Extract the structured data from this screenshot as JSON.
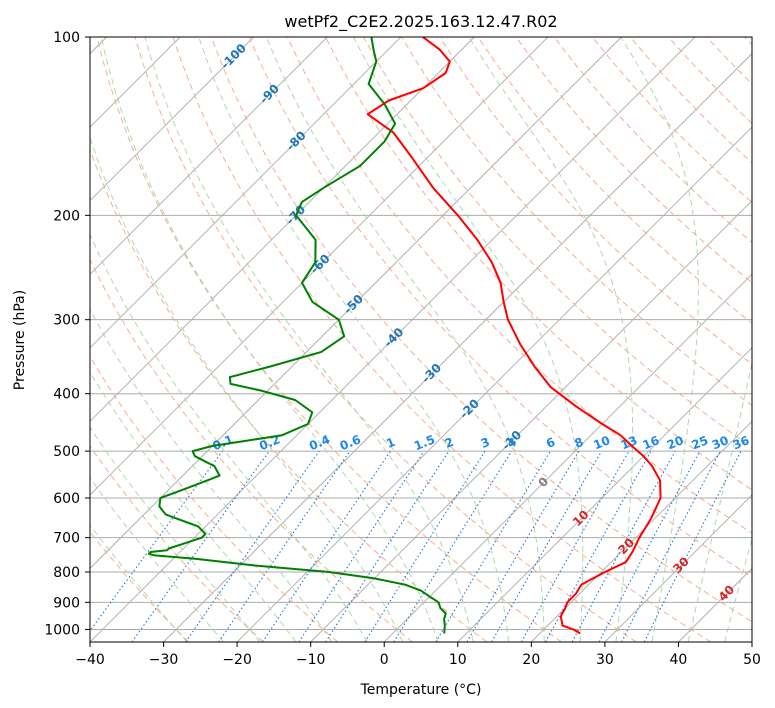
{
  "chart_data": {
    "type": "line",
    "subtype": "skew-t log-p diagram",
    "title": "wetPf2_C2E2.2025.163.12.47.R02",
    "xlabel": "Temperature (°C)",
    "ylabel": "Pressure (hPa)",
    "xlim": [
      -40,
      50
    ],
    "ylim": [
      1050,
      100
    ],
    "y_scale": "log",
    "grid": true,
    "x_ticks": [
      "−40",
      "−30",
      "−20",
      "−10",
      "0",
      "10",
      "20",
      "30",
      "40",
      "50"
    ],
    "y_ticks": [
      "100",
      "200",
      "300",
      "400",
      "500",
      "600",
      "700",
      "800",
      "900",
      "1000"
    ],
    "series": [
      {
        "color": "#ff0000",
        "pressure": [
          1016,
          1000,
          985,
          950,
          920,
          900,
          870,
          840,
          800,
          770,
          740,
          700,
          650,
          600,
          560,
          530,
          510,
          490,
          470,
          450,
          420,
          390,
          360,
          330,
          300,
          280,
          260,
          240,
          220,
          200,
          180,
          160,
          145,
          135,
          128,
          122,
          115,
          110,
          105,
          100
        ],
        "temperature": [
          25.5,
          24,
          22,
          20.5,
          20,
          19.5,
          19.5,
          19,
          20.5,
          22,
          21.5,
          20.5,
          19.5,
          18,
          15.5,
          12.5,
          10,
          7,
          4,
          0,
          -6,
          -12,
          -17,
          -22,
          -27,
          -30,
          -33,
          -37,
          -42,
          -48,
          -55,
          -62,
          -68,
          -74,
          -73,
          -70,
          -69,
          -70,
          -73,
          -77
        ]
      },
      {
        "color": "#008000",
        "pressure": [
          1016,
          1000,
          985,
          960,
          940,
          920,
          900,
          880,
          860,
          840,
          820,
          800,
          780,
          760,
          750,
          745,
          740,
          735,
          730,
          720,
          700,
          690,
          680,
          670,
          660,
          650,
          640,
          630,
          620,
          600,
          590,
          580,
          570,
          560,
          550,
          540,
          530,
          520,
          510,
          500,
          490,
          480,
          470,
          450,
          430,
          410,
          395,
          385,
          375,
          360,
          340,
          320,
          300,
          280,
          260,
          240,
          220,
          200,
          190,
          180,
          165,
          150,
          140,
          130,
          120,
          110,
          105,
          100
        ],
        "temperature": [
          7,
          6.5,
          6,
          5,
          4.5,
          3,
          2,
          0,
          -2,
          -5,
          -10,
          -17,
          -28,
          -37,
          -43,
          -44,
          -44,
          -42,
          -42,
          -41,
          -39,
          -39,
          -40,
          -41,
          -43,
          -45,
          -47,
          -48,
          -49,
          -50,
          -49,
          -48,
          -47,
          -46,
          -45,
          -46,
          -47,
          -49,
          -51,
          -52,
          -50,
          -46,
          -42,
          -40,
          -41,
          -45,
          -51,
          -56,
          -57,
          -53,
          -48,
          -47,
          -50,
          -56,
          -60,
          -61,
          -64,
          -70,
          -71,
          -70,
          -68,
          -68,
          -69,
          -73,
          -78,
          -80,
          -82,
          -84
        ]
      }
    ],
    "isotherm_labels": [
      {
        "text": "10",
        "color": "#d62728"
      },
      {
        "text": "20",
        "color": "#d62728"
      },
      {
        "text": "30",
        "color": "#d62728"
      },
      {
        "text": "40",
        "color": "#d62728"
      },
      {
        "text": "0",
        "color": "#808080"
      },
      {
        "text": "-10",
        "color": "#1f77b4"
      },
      {
        "text": "-20",
        "color": "#1f77b4"
      },
      {
        "text": "-30",
        "color": "#1f77b4"
      },
      {
        "text": "-40",
        "color": "#1f77b4"
      },
      {
        "text": "-50",
        "color": "#1f77b4"
      },
      {
        "text": "-60",
        "color": "#1f77b4"
      },
      {
        "text": "-70",
        "color": "#1f77b4"
      },
      {
        "text": "-80",
        "color": "#1f77b4"
      },
      {
        "text": "-90",
        "color": "#1f77b4"
      },
      {
        "text": "-100",
        "color": "#1f77b4"
      }
    ],
    "mixing_ratio_labels": [
      "0.1",
      "0.2",
      "0.4",
      "0.6",
      "1",
      "1.5",
      "2",
      "3",
      "4",
      "6",
      "8",
      "10",
      "13",
      "16",
      "20",
      "25",
      "30",
      "36"
    ],
    "mixing_ratio_values": [
      0.1,
      0.2,
      0.4,
      0.6,
      1,
      1.5,
      2,
      3,
      4,
      6,
      8,
      10,
      13,
      16,
      20,
      25,
      30,
      36
    ],
    "colors": {
      "isotherm": "#ababab",
      "dry_adiabat": "#f4a582",
      "moist_adiabat": "#a6d3a6",
      "mixing_ratio": "#1f77d4",
      "mixing_ratio_label": "#1e88e5",
      "temperature": "#ff0000",
      "dewpoint": "#008000"
    }
  }
}
